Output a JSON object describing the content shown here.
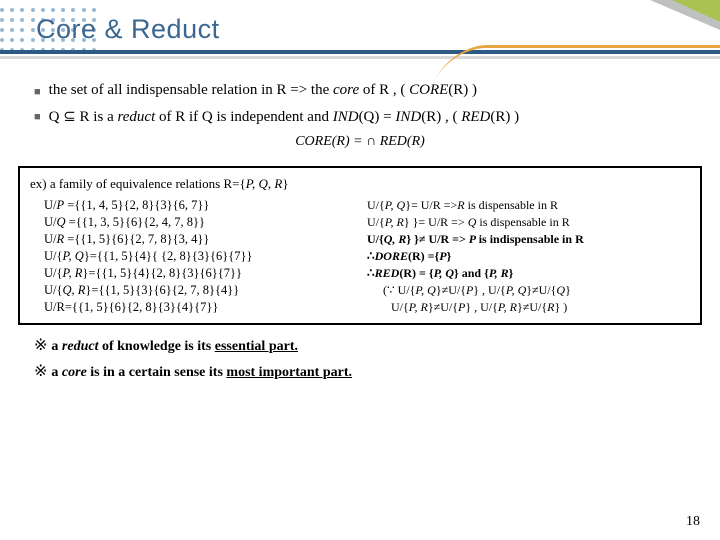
{
  "colors": {
    "navy": "#2c5a84",
    "lightblue": "#98b9d4",
    "orange": "#e8a640",
    "green": "#a9c251",
    "gray": "#c0c0c0"
  },
  "title": "Core & Reduct",
  "b1a": "the set of all indispensable relation in R  => the ",
  "b1b": "core",
  "b1c": " of R , ( ",
  "b1d": "CORE",
  "b1e": "(R) )",
  "b2a": "Q ⊆ R is a ",
  "b2b": "reduct",
  "b2c": " of R if Q is independent and ",
  "b2d": "IND",
  "b2e": "(Q) = ",
  "b2f": "IND",
  "b2g": "(R) , ( ",
  "b2h": "RED",
  "b2i": "(R) )",
  "formula": "CORE(R) = ∩ RED(R)",
  "ex_intro_a": "ex) a family of equivalence relations R={",
  "ex_intro_b": "P, Q, R",
  "ex_intro_c": "}",
  "L1a": "U/",
  "L1b": "P",
  "L1c": " ={{1, 4, 5}{2, 8}{3}{6, 7}}",
  "L2a": "U/",
  "L2b": "Q",
  "L2c": " ={{1, 3, 5}{6}{2, 4, 7, 8}}",
  "L3a": "U/",
  "L3b": "R",
  "L3c": " ={{1, 5}{6}{2, 7, 8}{3, 4}}",
  "L4a": "U/{",
  "L4b": "P, Q",
  "L4c": "}={{1, 5}{4}{ {2, 8}{3}{6}{7}}",
  "L5a": "U/{",
  "L5b": "P, R",
  "L5c": "}={{1, 5}{4}{2, 8}{3}{6}{7}}",
  "L6a": "U/{",
  "L6b": "Q, R",
  "L6c": "}={{1, 5}{3}{6}{2, 7, 8}{4}}",
  "L7": "U/R={{1, 5}{6}{2, 8}{3}{4}{7}}",
  "R1a": "U/{",
  "R1b": "P, Q",
  "R1c": "}= U/R   =>",
  "R1d": "R",
  "R1e": " is dispensable in R",
  "R2a": "U/{",
  "R2b": "P, R",
  "R2c": "} }= U/R => ",
  "R2d": "Q",
  "R2e": " is dispensable in R",
  "R3a": "U/{",
  "R3b": "Q, R",
  "R3c": "} }≠ U/R => ",
  "R3d": "P ",
  "R3e": "is indispensable in R",
  "R4a": "∴",
  "R4b": "DORE",
  "R4c": "(R) ={",
  "R4d": "P",
  "R4e": "}",
  "R5a": "∴",
  "R5b": "RED",
  "R5c": "(R) = {",
  "R5d": "P, Q",
  "R5e": "} and {",
  "R5f": "P, R",
  "R5g": "}",
  "R6a": "(∵ U/{",
  "R6b": "P, Q",
  "R6c": "}≠U/{",
  "R6d": "P",
  "R6e": "} , U/{",
  "R6f": "P, Q",
  "R6g": "}≠U/{",
  "R6h": "Q",
  "R6i": "}",
  "R7a": "U/{",
  "R7b": "P, R",
  "R7c": "}≠U/{",
  "R7d": "P",
  "R7e": "} , U/{",
  "R7f": "P, R",
  "R7g": "}≠U/{",
  "R7h": "R",
  "R7i": "}    )",
  "n1a": "a ",
  "n1b": "reduct",
  "n1c": " of knowledge is its ",
  "n1d": "essential part.",
  "n2a": "a ",
  "n2b": "core",
  "n2c": " is in a certain sense its ",
  "n2d": "most important part.",
  "page": "18"
}
